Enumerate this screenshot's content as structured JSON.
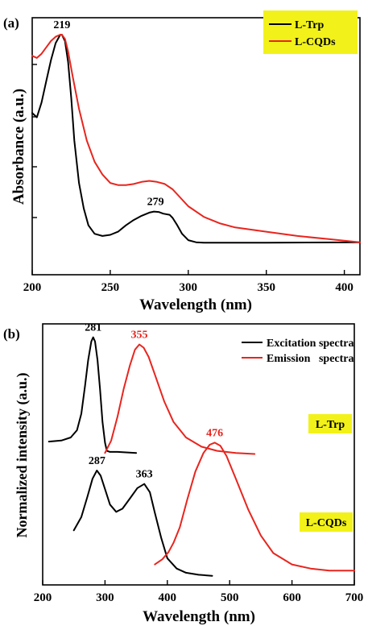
{
  "chart_data": [
    {
      "type": "line",
      "panel_label": "(a)",
      "xlabel": "Wavelength (nm)",
      "ylabel": "Absorbance (a.u.)",
      "xlim": [
        200,
        410
      ],
      "ylim": [
        0,
        1
      ],
      "xticks": [
        200,
        250,
        300,
        350,
        400
      ],
      "y_tick_labels_shown": false,
      "legend": {
        "placement": "top-right",
        "background": "#f2f21a",
        "entries": [
          "L-Trp",
          "L-CQDs"
        ]
      },
      "series": [
        {
          "name": "L-Trp",
          "color": "#000000",
          "x": [
            200,
            203,
            206,
            209,
            212,
            215,
            218,
            219,
            221,
            223,
            225,
            227,
            230,
            233,
            236,
            240,
            245,
            250,
            255,
            260,
            265,
            270,
            275,
            278,
            281,
            284,
            288,
            290,
            293,
            296,
            300,
            305,
            310,
            350,
            410
          ],
          "y": [
            0.63,
            0.61,
            0.68,
            0.78,
            0.88,
            0.96,
            1.0,
            1.0,
            0.97,
            0.87,
            0.7,
            0.5,
            0.3,
            0.18,
            0.1,
            0.06,
            0.05,
            0.055,
            0.07,
            0.1,
            0.125,
            0.145,
            0.16,
            0.165,
            0.163,
            0.155,
            0.15,
            0.135,
            0.1,
            0.06,
            0.03,
            0.02,
            0.018,
            0.018,
            0.02
          ]
        },
        {
          "name": "L-CQDs",
          "color": "#e8251e",
          "x": [
            200,
            203,
            206,
            209,
            212,
            215,
            218,
            219,
            221,
            223,
            226,
            230,
            235,
            240,
            245,
            250,
            255,
            260,
            265,
            270,
            275,
            280,
            285,
            290,
            295,
            300,
            310,
            320,
            330,
            350,
            370,
            390,
            410
          ],
          "y": [
            0.9,
            0.89,
            0.91,
            0.94,
            0.97,
            0.99,
            1.0,
            1.0,
            0.98,
            0.92,
            0.8,
            0.65,
            0.5,
            0.4,
            0.34,
            0.3,
            0.29,
            0.29,
            0.295,
            0.305,
            0.31,
            0.305,
            0.295,
            0.27,
            0.23,
            0.19,
            0.14,
            0.11,
            0.09,
            0.07,
            0.05,
            0.035,
            0.02
          ]
        }
      ],
      "annotations": [
        {
          "text": "219",
          "x": 219,
          "y": 1.0,
          "color": "#000000"
        },
        {
          "text": "279",
          "x": 279,
          "y": 0.165,
          "color": "#000000"
        }
      ]
    },
    {
      "type": "line",
      "panel_label": "(b)",
      "xlabel": "Wavelength (nm)",
      "ylabel": "Normalized intensity (a.u.)",
      "xlim": [
        200,
        700
      ],
      "ylim": [
        0,
        2.45
      ],
      "xticks": [
        200,
        300,
        400,
        500,
        600,
        700
      ],
      "y_tick_labels_shown": false,
      "legend": {
        "placement": "top-right",
        "entries": [
          "Excitation spectra",
          "Emission   spectra"
        ]
      },
      "sample_labels": [
        {
          "text": "L-Trp",
          "background": "#f2f21a"
        },
        {
          "text": "L-CQDs",
          "background": "#f2f21a"
        }
      ],
      "series": [
        {
          "name": "L-Trp excitation",
          "color": "#000000",
          "x": [
            210,
            230,
            245,
            255,
            262,
            268,
            273,
            278,
            281,
            284,
            288,
            292,
            296,
            300,
            303,
            308,
            320,
            350
          ],
          "y": [
            1.31,
            1.32,
            1.35,
            1.42,
            1.58,
            1.85,
            2.1,
            2.28,
            2.32,
            2.28,
            2.1,
            1.82,
            1.5,
            1.3,
            1.22,
            1.21,
            1.21,
            1.2
          ]
        },
        {
          "name": "L-Trp emission",
          "color": "#e8251e",
          "x": [
            300,
            310,
            320,
            330,
            340,
            348,
            355,
            362,
            370,
            380,
            395,
            410,
            430,
            455,
            480,
            510,
            540
          ],
          "y": [
            1.2,
            1.32,
            1.55,
            1.82,
            2.05,
            2.2,
            2.25,
            2.22,
            2.13,
            1.96,
            1.7,
            1.5,
            1.35,
            1.26,
            1.22,
            1.2,
            1.19
          ]
        },
        {
          "name": "L-CQDs excitation",
          "color": "#000000",
          "x": [
            250,
            262,
            272,
            280,
            287,
            293,
            300,
            308,
            318,
            328,
            340,
            352,
            363,
            372,
            380,
            390,
            400,
            415,
            430,
            450,
            472
          ],
          "y": [
            0.45,
            0.58,
            0.78,
            0.95,
            1.03,
            0.98,
            0.85,
            0.7,
            0.63,
            0.66,
            0.76,
            0.86,
            0.9,
            0.82,
            0.62,
            0.38,
            0.18,
            0.08,
            0.04,
            0.02,
            0.01
          ]
        },
        {
          "name": "L-CQDs emission",
          "color": "#e8251e",
          "x": [
            380,
            392,
            402,
            410,
            420,
            432,
            445,
            458,
            468,
            476,
            485,
            495,
            510,
            530,
            550,
            570,
            600,
            630,
            660,
            700
          ],
          "y": [
            0.12,
            0.17,
            0.24,
            0.33,
            0.48,
            0.75,
            1.02,
            1.2,
            1.28,
            1.3,
            1.27,
            1.17,
            0.95,
            0.65,
            0.4,
            0.23,
            0.12,
            0.08,
            0.06,
            0.06
          ]
        }
      ],
      "annotations": [
        {
          "text": "281",
          "x": 281,
          "y": 2.32,
          "color": "#000000"
        },
        {
          "text": "355",
          "x": 355,
          "y": 2.25,
          "color": "#e8251e"
        },
        {
          "text": "287",
          "x": 287,
          "y": 1.03,
          "color": "#000000"
        },
        {
          "text": "363",
          "x": 363,
          "y": 0.9,
          "color": "#000000"
        },
        {
          "text": "476",
          "x": 476,
          "y": 1.3,
          "color": "#e8251e"
        }
      ]
    }
  ]
}
